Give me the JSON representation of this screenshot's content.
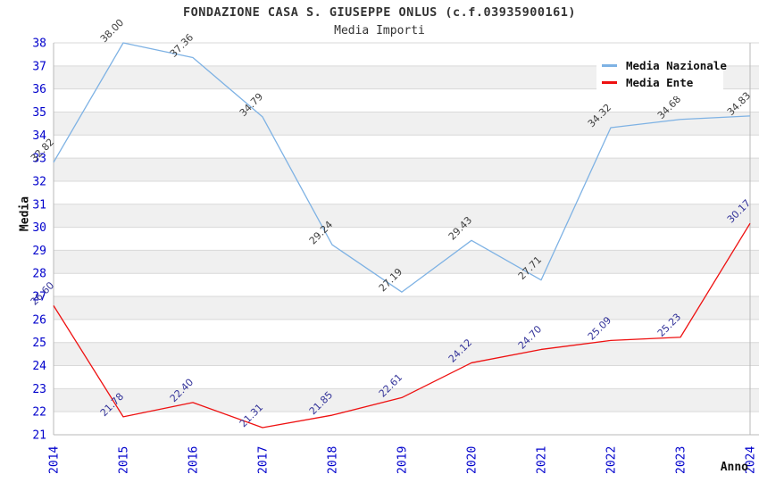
{
  "header": {
    "title": "FONDAZIONE CASA S. GIUSEPPE ONLUS (c.f.03935900161)",
    "subtitle": "Media Importi"
  },
  "axes": {
    "y_title": "Media",
    "x_title": "Anno",
    "tick_color": "#0000cc",
    "y_ticks": [
      21,
      22,
      23,
      24,
      25,
      26,
      27,
      28,
      29,
      30,
      31,
      32,
      33,
      34,
      35,
      36,
      37,
      38
    ]
  },
  "legend": {
    "items": [
      {
        "label": "Media Nazionale",
        "color": "#7EB2E4"
      },
      {
        "label": "Media Ente",
        "color": "#EE1111"
      }
    ]
  },
  "chart_data": {
    "type": "line",
    "title": "FONDAZIONE CASA S. GIUSEPPE ONLUS (c.f.03935900161)",
    "subtitle": "Media Importi",
    "xlabel": "Anno",
    "ylabel": "Media",
    "ylim": [
      21,
      38
    ],
    "grid": "horizontal-stripes",
    "legend_position": "top-right",
    "x": [
      2014,
      2015,
      2016,
      2017,
      2018,
      2019,
      2020,
      2021,
      2022,
      2023,
      2024
    ],
    "series": [
      {
        "name": "Media Nazionale",
        "color": "#7EB2E4",
        "label_color": "#404040",
        "values": [
          32.82,
          38.0,
          37.36,
          34.79,
          29.24,
          27.19,
          29.43,
          27.71,
          34.32,
          34.68,
          34.83
        ]
      },
      {
        "name": "Media Ente",
        "color": "#EE1111",
        "label_color": "#333399",
        "values": [
          26.6,
          21.78,
          22.4,
          21.31,
          21.85,
          22.61,
          24.12,
          24.7,
          25.09,
          25.23,
          30.17
        ]
      }
    ]
  },
  "style": {
    "stripe_color": "#f0f0f0",
    "gridline_color": "#d9d9d9",
    "border_color": "#b8b8b8"
  }
}
